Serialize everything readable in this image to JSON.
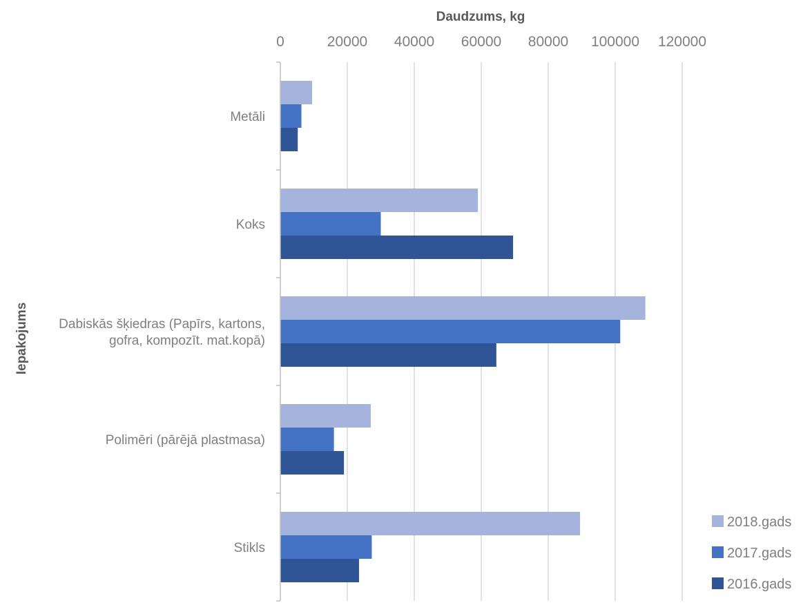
{
  "chart_data": {
    "type": "bar",
    "orientation": "horizontal",
    "title": "",
    "xlabel": "Daudzums, kg",
    "ylabel": "Iepakojums",
    "xlim": [
      0,
      120000
    ],
    "x_ticks": [
      "0",
      "20000",
      "40000",
      "60000",
      "80000",
      "100000",
      "120000"
    ],
    "x_axis_position": "top",
    "grid": true,
    "legend_position": "bottom-right",
    "categories": [
      [
        "Metāli"
      ],
      [
        "Koks"
      ],
      [
        "Dabiskās šķiedras (Papīrs, kartons,",
        "gofra,  kompozīt. mat.kopā)"
      ],
      [
        "Polimēri  (pārējā plastmasa)"
      ],
      [
        "Stikls"
      ]
    ],
    "series": [
      {
        "name": "2018.gads",
        "color": "#a5b4dc",
        "values": [
          9500,
          59000,
          109000,
          27000,
          89500
        ]
      },
      {
        "name": "2017.gads",
        "color": "#4472c4",
        "values": [
          6300,
          30000,
          101500,
          16000,
          27300
        ]
      },
      {
        "name": "2016.gads",
        "color": "#2f5597",
        "values": [
          5200,
          69500,
          64500,
          19000,
          23500
        ]
      }
    ]
  }
}
